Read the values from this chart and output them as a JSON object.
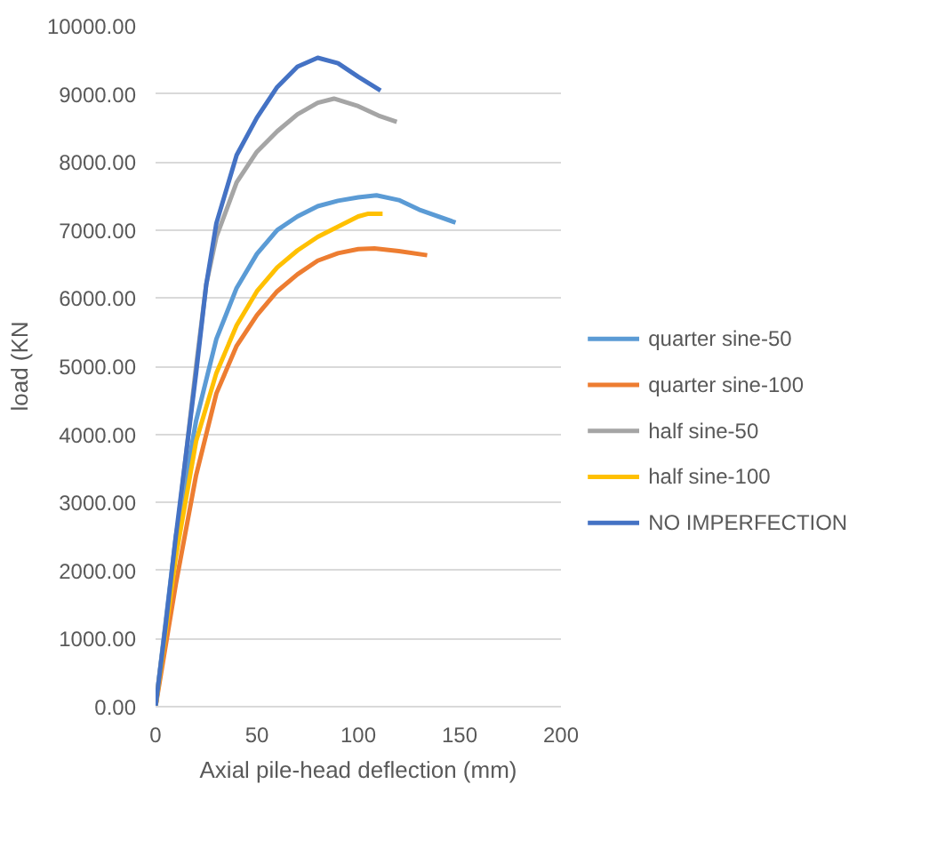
{
  "chart_data": {
    "type": "line",
    "xlabel": "Axial pile-head deflection (mm)",
    "ylabel": "load (KN",
    "xlim": [
      0,
      200
    ],
    "xticks": [
      0,
      50,
      100,
      150,
      200
    ],
    "ylim": [
      0,
      10000
    ],
    "yticks": [
      {
        "value": 0,
        "label": "0.00"
      },
      {
        "value": 1000,
        "label": "1000.00"
      },
      {
        "value": 2000,
        "label": "2000.00"
      },
      {
        "value": 3000,
        "label": "3000.00"
      },
      {
        "value": 4000,
        "label": "4000.00"
      },
      {
        "value": 5000,
        "label": "5000.00"
      },
      {
        "value": 6000,
        "label": "6000.00"
      },
      {
        "value": 7000,
        "label": "7000.00"
      },
      {
        "value": 8000,
        "label": "8000.00"
      },
      {
        "value": 9000,
        "label": "9000.00"
      },
      {
        "value": 10000,
        "label": "10000.00"
      }
    ],
    "grid": "y",
    "legend": "right",
    "marker": "none",
    "line_style": "solid",
    "series": [
      {
        "name": "quarter sine-50",
        "color": "#5b9bd5",
        "x": [
          0,
          10,
          20,
          30,
          40,
          50,
          60,
          70,
          80,
          90,
          100,
          109,
          120,
          130,
          148
        ],
        "values": [
          0,
          2500,
          4200,
          5400,
          6150,
          6650,
          7000,
          7200,
          7350,
          7430,
          7480,
          7510,
          7440,
          7300,
          7110
        ]
      },
      {
        "name": "quarter sine-100",
        "color": "#ed7d31",
        "x": [
          0,
          10,
          20,
          30,
          40,
          50,
          60,
          70,
          80,
          90,
          100,
          108,
          120,
          134
        ],
        "values": [
          0,
          1800,
          3400,
          4600,
          5300,
          5750,
          6100,
          6350,
          6550,
          6660,
          6720,
          6730,
          6690,
          6630
        ]
      },
      {
        "name": "half sine-50",
        "color": "#a5a5a5",
        "x": [
          0,
          10,
          20,
          25,
          30,
          40,
          50,
          60,
          70,
          80,
          88,
          100,
          110,
          119
        ],
        "values": [
          0,
          2400,
          5000,
          6200,
          6900,
          7700,
          8150,
          8450,
          8700,
          8870,
          8930,
          8820,
          8680,
          8590
        ]
      },
      {
        "name": "half sine-100",
        "color": "#ffc000",
        "x": [
          0,
          10,
          20,
          30,
          40,
          50,
          60,
          70,
          80,
          90,
          100,
          105,
          112
        ],
        "values": [
          0,
          2200,
          3900,
          4900,
          5600,
          6100,
          6450,
          6700,
          6900,
          7050,
          7200,
          7240,
          7240
        ]
      },
      {
        "name": "NO IMPERFECTION",
        "color": "#4472c4",
        "x": [
          0,
          5,
          10,
          15,
          20,
          25,
          30,
          40,
          50,
          60,
          70,
          80,
          90,
          100,
          111
        ],
        "values": [
          0,
          1200,
          2500,
          3700,
          4900,
          6200,
          7100,
          8100,
          8650,
          9100,
          9400,
          9530,
          9450,
          9250,
          9050
        ]
      }
    ]
  }
}
